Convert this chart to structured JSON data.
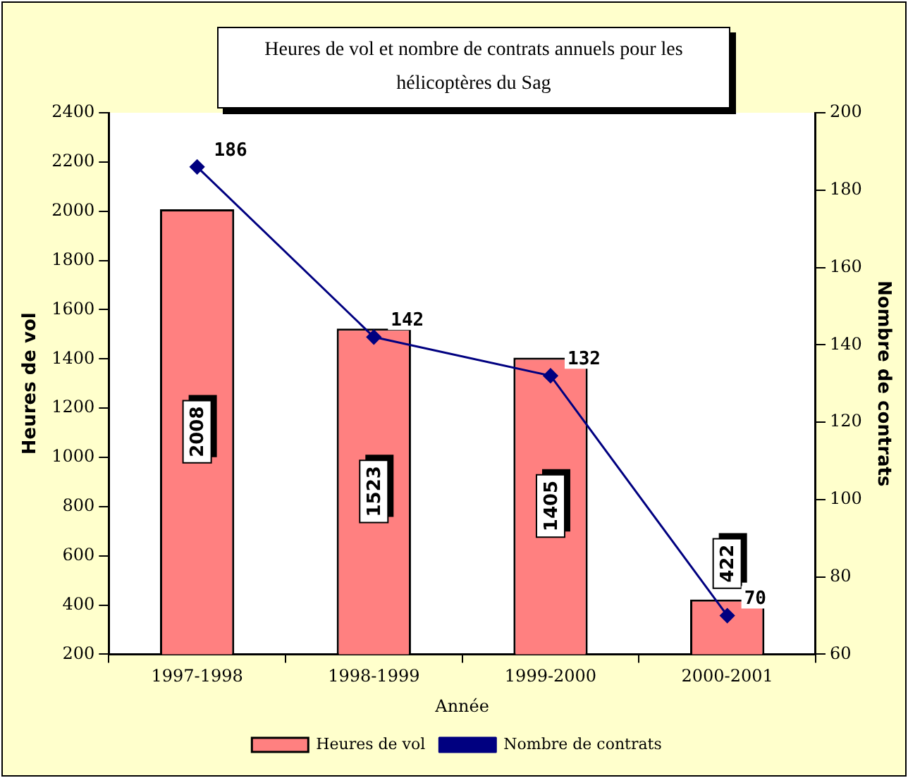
{
  "chart_data": {
    "type": "bar",
    "title": "Heures de vol et nombre de contrats annuels pour les hélicoptères du Sag",
    "xlabel": "Année",
    "ylabel": "Heures de vol",
    "y2label": "Nombre de contrats",
    "categories": [
      "1997-1998",
      "1998-1999",
      "1999-2000",
      "2000-2001"
    ],
    "series": [
      {
        "name": "Heures de vol",
        "color": "#ff8080",
        "values": [
          2008,
          1523,
          1405,
          422
        ]
      },
      {
        "name": "Nombre de contrats",
        "type": "line",
        "axis": "y2",
        "color": "#000080",
        "marker": "diamond",
        "values": [
          186,
          142,
          132,
          70
        ]
      }
    ],
    "ylim": [
      200,
      2400
    ],
    "yticks": [
      200,
      400,
      600,
      800,
      1000,
      1200,
      1400,
      1600,
      1800,
      2000,
      2200,
      2400
    ],
    "y2lim": [
      60,
      200
    ],
    "y2ticks": [
      60,
      80,
      100,
      120,
      140,
      160,
      180,
      200
    ],
    "data_labels": true,
    "grid": false,
    "legend": "bottom"
  }
}
